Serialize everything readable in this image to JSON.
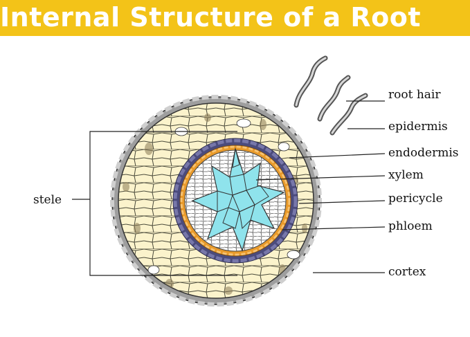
{
  "header": {
    "title": "Internal Structure of a Root"
  },
  "labels": {
    "root_hair": "root hair",
    "epidermis": "epidermis",
    "endodermis": "endodermis",
    "xylem": "xylem",
    "pericycle": "pericycle",
    "phloem": "phloem",
    "cortex": "cortex",
    "stele": "stele"
  },
  "colors": {
    "title_bar": "#f3c318",
    "title_text": "#ffffff",
    "epidermis": "#9e9e9e",
    "cortex_cell": "#fbf3cc",
    "cortex_wall": "#333333",
    "endodermis": "#4b4b7c",
    "pericycle": "#e99a2a",
    "xylem": "#8fe3ec",
    "phloem": "#ffffff",
    "leader_line": "#222222"
  }
}
